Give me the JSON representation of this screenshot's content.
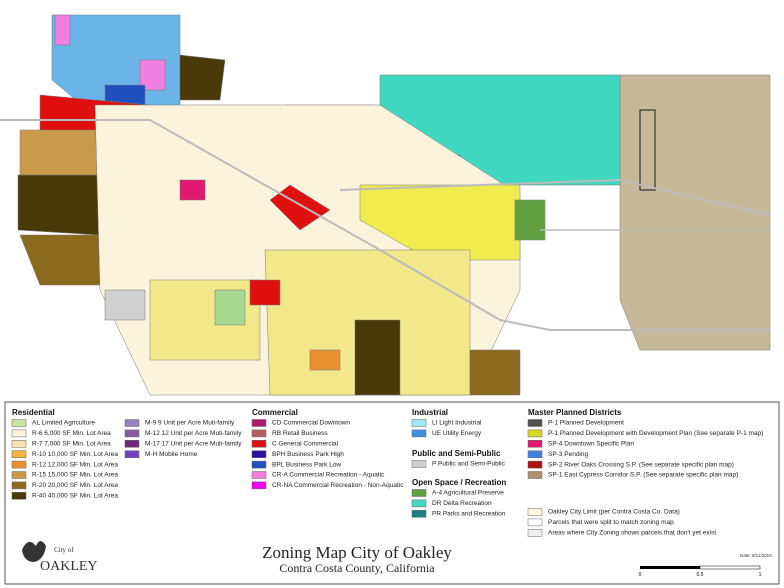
{
  "title": "Zoning Map City of Oakley",
  "subtitle": "Contra Costa County, California",
  "logo": {
    "top": "City of",
    "name": "OAKLEY"
  },
  "date": "Date: 8/11/2015",
  "scale": [
    "0",
    "0.5",
    "1"
  ],
  "legend": [
    {
      "heading": "Residential",
      "items": [
        {
          "label": "AL Limited Agriculture",
          "color": "#c8e6a0"
        },
        {
          "label": "R-6  6,000 SF Min. Lot Area",
          "color": "#fbf3dc"
        },
        {
          "label": "R-7  7,000 SF Min. Lot Area",
          "color": "#f8e0b0"
        },
        {
          "label": "R-10 10,000 SF Min. Lot Area",
          "color": "#f5b43c"
        },
        {
          "label": "R-12 12,000 SF Min. Lot Area",
          "color": "#e89030"
        },
        {
          "label": "R-15 15,000 SF Min. Lot Area",
          "color": "#c89a4a"
        },
        {
          "label": "R-20 20,000 SF Min. Lot Area",
          "color": "#8b6a1e"
        },
        {
          "label": "R-40 40,000 SF Min. Lot Area",
          "color": "#4a3a0a"
        }
      ]
    },
    {
      "items": [
        {
          "label": "M-9 9 Unit per Acre Muti-family",
          "color": "#9b80c0"
        },
        {
          "label": "M-12 12 Unit per Acre Muti-family",
          "color": "#8a5aa0"
        },
        {
          "label": "M-17 17 Unit per Acre Muti-family",
          "color": "#6a2a7a"
        },
        {
          "label": "M-H Mobile Home",
          "color": "#7040c0"
        }
      ]
    },
    {
      "heading": "Commercial",
      "items": [
        {
          "label": "CD Commercial Downtown",
          "color": "#b0186a"
        },
        {
          "label": "RB Retail Business",
          "color": "#b06060"
        },
        {
          "label": "C General Commercial",
          "color": "#e01010"
        },
        {
          "label": "BPH Business Park High",
          "color": "#3010a0"
        },
        {
          "label": "BPL Business Park Low",
          "color": "#2050c0"
        },
        {
          "label": "CR-A Commercial Recreation - Aquatic",
          "color": "#f080e0"
        },
        {
          "label": "CR-NA Commercial Recreation - Non-Aquatic",
          "color": "#f000f0"
        }
      ]
    },
    {
      "heading": "Industrial",
      "items": [
        {
          "label": "LI Light Industrial",
          "color": "#a0e8f8"
        },
        {
          "label": "UE Utility Energy",
          "color": "#4090e0"
        }
      ]
    },
    {
      "heading": "Public and Semi-Public",
      "items": [
        {
          "label": "P Public and Semi-Public",
          "color": "#d0d0d0"
        }
      ]
    },
    {
      "heading": "Open Space / Recreation",
      "items": [
        {
          "label": "A-4 Agricultural Preserve",
          "color": "#60a040"
        },
        {
          "label": "DR Delta Recreation",
          "color": "#40d8c0"
        },
        {
          "label": "PR Parks and Recreation",
          "color": "#208080"
        }
      ]
    },
    {
      "heading": "Master Planned Districts",
      "items": [
        {
          "label": "P-1 Planned Development",
          "color": "#505050"
        },
        {
          "label": "P-1 Planned Development with Development Plan (See separate P-1 map)",
          "color": "#d8d820"
        },
        {
          "label": "SP-4 Downtown Specific Plan",
          "color": "#e01870"
        },
        {
          "label": "SP-3 Pending",
          "color": "#4080e0"
        },
        {
          "label": "SP-2 River Oaks Crossing S.P. (See separate specific plan map)",
          "color": "#b01010"
        },
        {
          "label": "SP-1 East Cypress Corridor S.P. (See separate specific plan map)",
          "color": "#b09070"
        }
      ]
    },
    {
      "items": [
        {
          "label": "Oakley City Limit (per Contra Costa Co. Data)",
          "color": "#fff6e0"
        },
        {
          "label": "Parcels that were split to match zoning map",
          "color": "#ffffff"
        },
        {
          "label": "Areas where City Zoning shows parcels that don't yet exist",
          "color": "#eeeeee"
        }
      ]
    }
  ]
}
